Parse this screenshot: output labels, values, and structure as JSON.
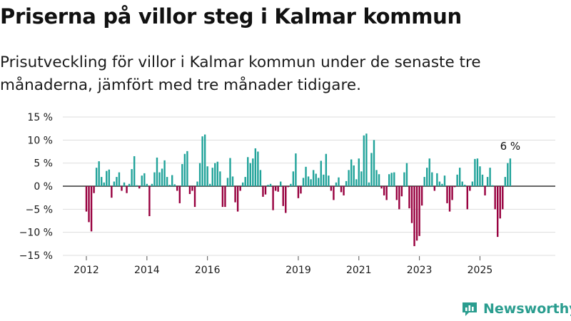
{
  "title": "Priserna på villor steg i Kalmar kommun",
  "subtitle": "Prisutveckling för villor i Kalmar kommun under de senaste tre månaderna, jämfört med tre månader tidigare.",
  "logo": {
    "text": "Newsworthy",
    "icon": "newsworthy-chart-logo-icon"
  },
  "colors": {
    "positive": "#21a39a",
    "negative": "#98003f",
    "grid": "#dddddd",
    "zero": "#333333",
    "brand": "#2a9d8f"
  },
  "chart_data": {
    "type": "bar",
    "ylim": [
      -15,
      15
    ],
    "yticks": [
      -15,
      -10,
      -5,
      0,
      5,
      10,
      15
    ],
    "ytick_labels": [
      "−15 %",
      "−10 %",
      "−5 %",
      "0 %",
      "5 %",
      "10 %",
      "15 %"
    ],
    "xticks": [
      "2012",
      "2014",
      "2016",
      "2019",
      "2021",
      "2023",
      "2025"
    ],
    "xtick_years": [
      2012,
      2014,
      2016,
      2019,
      2021,
      2023,
      2025
    ],
    "start": "2012-01",
    "annotation": "6 %",
    "grid": true,
    "values": [
      -5.5,
      -7.8,
      -9.8,
      -1.5,
      4,
      5.4,
      2,
      0.8,
      3.3,
      3.6,
      -2.5,
      1,
      2,
      3,
      -1,
      0.8,
      -1.5,
      0.5,
      3.7,
      6.5,
      0.2,
      -0.5,
      2.3,
      2.8,
      0.5,
      -6.5,
      0.5,
      3,
      6.2,
      3,
      3.8,
      5.6,
      2,
      0.3,
      2.4,
      0.4,
      -1,
      -3.7,
      4.8,
      7,
      7.6,
      -1.7,
      -1,
      -4.5,
      1,
      5,
      10.8,
      11.2,
      4.3,
      0.5,
      4,
      5,
      5.3,
      3.2,
      -4.5,
      -4.5,
      1.8,
      6.1,
      2.1,
      -3.5,
      -5.5,
      -1,
      0.8,
      2,
      6.3,
      5,
      6,
      8.2,
      7.5,
      3.5,
      -2.3,
      -1.8,
      0.3,
      0.5,
      -5.2,
      -1,
      -1.2,
      1,
      -4.3,
      -5.8,
      -0.2,
      0.5,
      3.2,
      7.1,
      -2.6,
      -1.6,
      1.8,
      4.2,
      2.1,
      1.5,
      3.5,
      2.7,
      1.8,
      5.5,
      2.5,
      7,
      2.3,
      -1,
      -3,
      0.8,
      1.9,
      -1.3,
      -2,
      1.1,
      3.5,
      5.8,
      4.5,
      1.5,
      6,
      3.2,
      11,
      11.4,
      0.8,
      7.2,
      10,
      3.5,
      2.6,
      -0.5,
      -2,
      -3,
      2.6,
      2.9,
      3,
      -3,
      -5,
      -2.2,
      3,
      5,
      -4.8,
      -8,
      -13,
      -11.8,
      -10.8,
      -4.2,
      2,
      4,
      6,
      3,
      -1,
      2.8,
      1,
      0.5,
      2.3,
      -3.7,
      -5.5,
      -3,
      -0.2,
      2.5,
      4,
      1,
      0.3,
      -5,
      -1,
      1,
      5.9,
      6,
      4.3,
      2.5,
      -2,
      2,
      4,
      0.2,
      -5,
      -11,
      -7,
      -5,
      2,
      5,
      6
    ]
  }
}
